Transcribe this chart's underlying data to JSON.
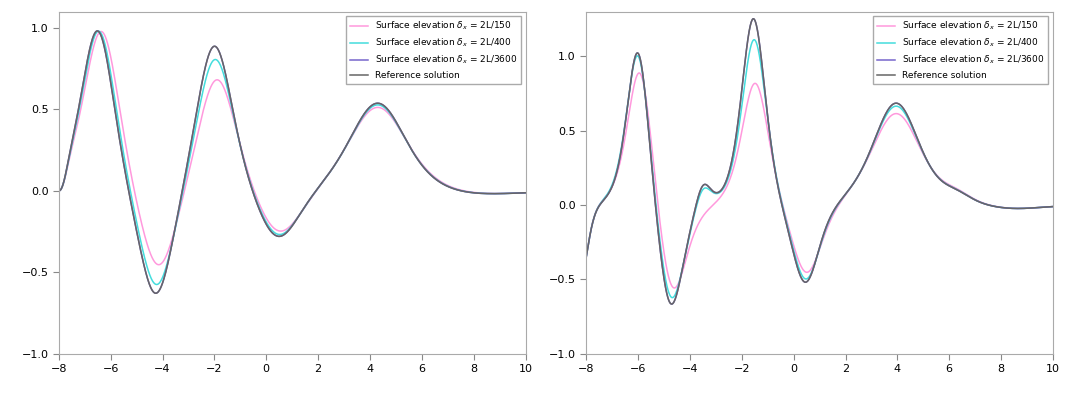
{
  "xlim": [
    -8,
    10
  ],
  "ylim_left": [
    -1,
    1.1
  ],
  "ylim_right": [
    -1,
    1.3
  ],
  "xticks": [
    -8,
    -6,
    -4,
    -2,
    0,
    2,
    4,
    6,
    8,
    10
  ],
  "yticks_left": [
    -1,
    -0.5,
    0,
    0.5,
    1
  ],
  "yticks_right": [
    -1,
    -0.5,
    0,
    0.5,
    1
  ],
  "color_150": "#FF99DD",
  "color_400": "#44DDDD",
  "color_3600": "#7766CC",
  "color_ref": "#666666",
  "lw_num": 1.1,
  "lw_ref": 1.1,
  "legend_labels": [
    "Surface elevation $\\delta_x$ = 2L/150",
    "Surface elevation $\\delta_x$ = 2L/400",
    "Surface elevation $\\delta_x$ = 2L/3600",
    "Reference solution"
  ]
}
